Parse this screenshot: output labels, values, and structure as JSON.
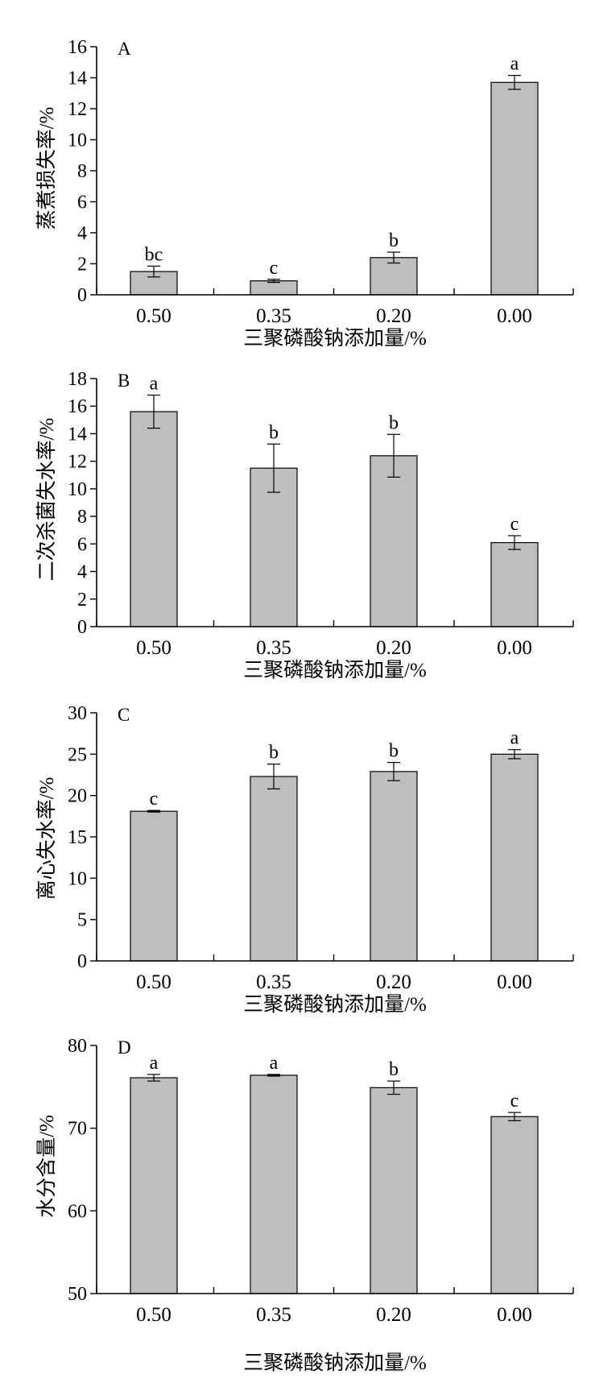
{
  "chart_data": [
    {
      "type": "bar",
      "panel": "A",
      "categories": [
        "0.50",
        "0.35",
        "0.20",
        "0.00"
      ],
      "values": [
        1.5,
        0.9,
        2.4,
        13.7
      ],
      "errors": [
        0.35,
        0.1,
        0.35,
        0.45
      ],
      "significance": [
        "bc",
        "c",
        "b",
        "a"
      ],
      "xlabel": "三聚磷酸钠添加量/%",
      "ylabel": "蒸煮损失率/%",
      "ylim": [
        0,
        16
      ],
      "yticks": [
        "0",
        "2",
        "4",
        "6",
        "8",
        "10",
        "12",
        "14",
        "16"
      ],
      "bar_color": "#bebebe"
    },
    {
      "type": "bar",
      "panel": "B",
      "categories": [
        "0.50",
        "0.35",
        "0.20",
        "0.00"
      ],
      "values": [
        15.6,
        11.5,
        12.4,
        6.1
      ],
      "errors": [
        1.2,
        1.75,
        1.55,
        0.5
      ],
      "significance": [
        "a",
        "b",
        "b",
        "c"
      ],
      "xlabel": "三聚磷酸钠添加量/%",
      "ylabel": "二次杀菌失水率/%",
      "ylim": [
        0,
        18
      ],
      "yticks": [
        "0",
        "2",
        "4",
        "6",
        "8",
        "10",
        "12",
        "14",
        "16",
        "18"
      ],
      "bar_color": "#bebebe"
    },
    {
      "type": "bar",
      "panel": "C",
      "categories": [
        "0.50",
        "0.35",
        "0.20",
        "0.00"
      ],
      "values": [
        18.1,
        22.3,
        22.9,
        25.0
      ],
      "errors": [
        0.1,
        1.5,
        1.1,
        0.55
      ],
      "significance": [
        "c",
        "b",
        "b",
        "a"
      ],
      "xlabel": "三聚磷酸钠添加量/%",
      "ylabel": "离心失水率/%",
      "ylim": [
        0,
        30
      ],
      "yticks": [
        "0",
        "5",
        "10",
        "15",
        "20",
        "25",
        "30"
      ],
      "bar_color": "#bebebe"
    },
    {
      "type": "bar",
      "panel": "D",
      "categories": [
        "0.50",
        "0.35",
        "0.20",
        "0.00"
      ],
      "values": [
        76.1,
        76.4,
        74.9,
        71.4
      ],
      "errors": [
        0.4,
        0.1,
        0.8,
        0.5
      ],
      "significance": [
        "a",
        "a",
        "b",
        "c"
      ],
      "xlabel": "三聚磷酸钠添加量/%",
      "ylabel": "水分含量/%",
      "ylim": [
        50,
        80
      ],
      "yticks": [
        "50",
        "60",
        "70",
        "80"
      ],
      "bar_color": "#bebebe"
    }
  ]
}
